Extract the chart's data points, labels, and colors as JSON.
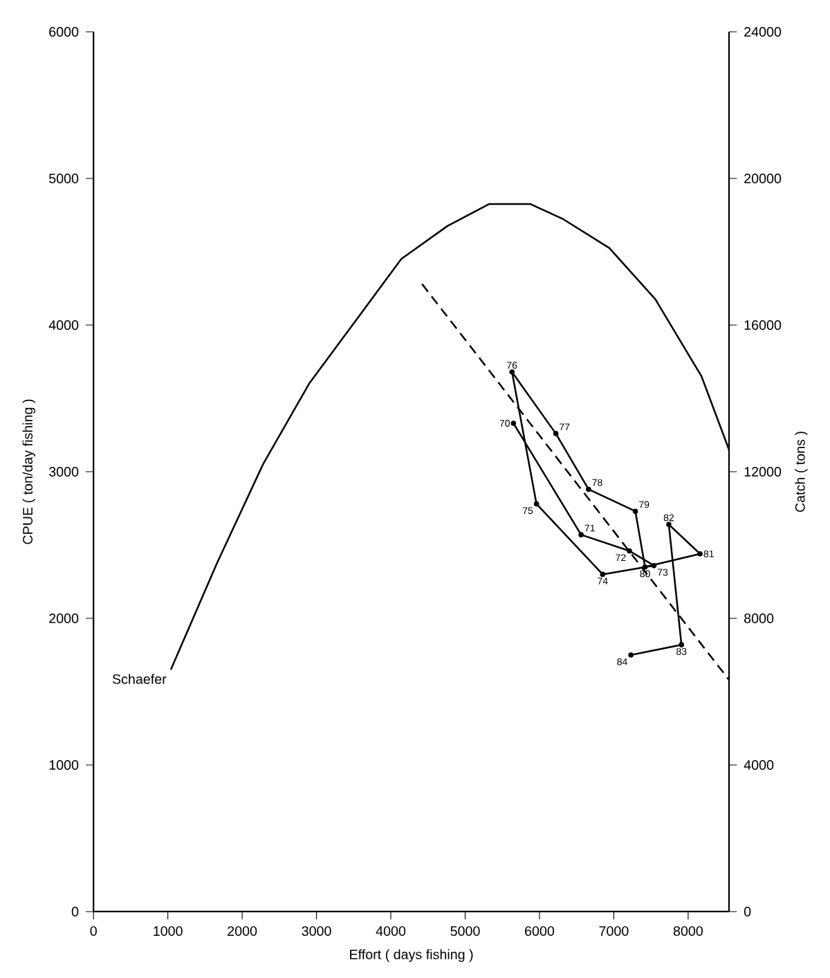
{
  "chart_data": {
    "type": "line",
    "xlabel": "Effort ( days fishing )",
    "ylabel": "CPUE ( ton/day fishing )",
    "y2label": "Catch ( tons )",
    "xlim": [
      0,
      8550
    ],
    "xticks": [
      0,
      1000,
      2000,
      3000,
      4000,
      5000,
      6000,
      7000,
      8000
    ],
    "ylim": [
      0,
      6000
    ],
    "yticks": [
      0,
      1000,
      2000,
      3000,
      4000,
      5000,
      6000
    ],
    "y2lim": [
      0,
      24000
    ],
    "y2ticks": [
      0,
      4000,
      8000,
      12000,
      16000,
      20000,
      24000
    ],
    "series": [
      {
        "name": "Schaefer",
        "axis": "y2",
        "color": "#000000",
        "x": [
          1040,
          1660,
          2280,
          2900,
          3520,
          4140,
          4760,
          5320,
          5880,
          6310,
          6940,
          7560,
          8180,
          8550
        ],
        "values": [
          6600,
          9500,
          12200,
          14400,
          16100,
          17800,
          18700,
          19300,
          19300,
          18900,
          18100,
          16700,
          14600,
          12600
        ]
      },
      {
        "line_style": "dashed",
        "color": "#000000",
        "x": [
          4420,
          8550
        ],
        "values": [
          4280,
          1580
        ]
      },
      {
        "marker": "circle",
        "color": "#000000",
        "x": [
          5650,
          6560,
          7210,
          7540,
          6850,
          5960,
          5630,
          6220,
          6660,
          7290,
          7420,
          8160,
          7740,
          7910,
          7230
        ],
        "values": [
          3330,
          2570,
          2460,
          2360,
          2300,
          2780,
          3680,
          3260,
          2880,
          2730,
          2350,
          2440,
          2640,
          1820,
          1750
        ]
      }
    ],
    "annotations": [
      {
        "text": "70",
        "x": 5650,
        "y": 3330
      },
      {
        "text": "71",
        "x": 6560,
        "y": 2570
      },
      {
        "text": "72",
        "x": 7210,
        "y": 2460
      },
      {
        "text": "73",
        "x": 7540,
        "y": 2360
      },
      {
        "text": "74",
        "x": 6850,
        "y": 2300
      },
      {
        "text": "75",
        "x": 5960,
        "y": 2780
      },
      {
        "text": "76",
        "x": 5630,
        "y": 3680
      },
      {
        "text": "77",
        "x": 6220,
        "y": 3260
      },
      {
        "text": "78",
        "x": 6660,
        "y": 2880
      },
      {
        "text": "79",
        "x": 7290,
        "y": 2730
      },
      {
        "text": "80",
        "x": 7420,
        "y": 2350
      },
      {
        "text": "81",
        "x": 8160,
        "y": 2440
      },
      {
        "text": "82",
        "x": 7740,
        "y": 2640
      },
      {
        "text": "83",
        "x": 7910,
        "y": 1820
      },
      {
        "text": "84",
        "x": 7230,
        "y": 1750
      }
    ]
  }
}
